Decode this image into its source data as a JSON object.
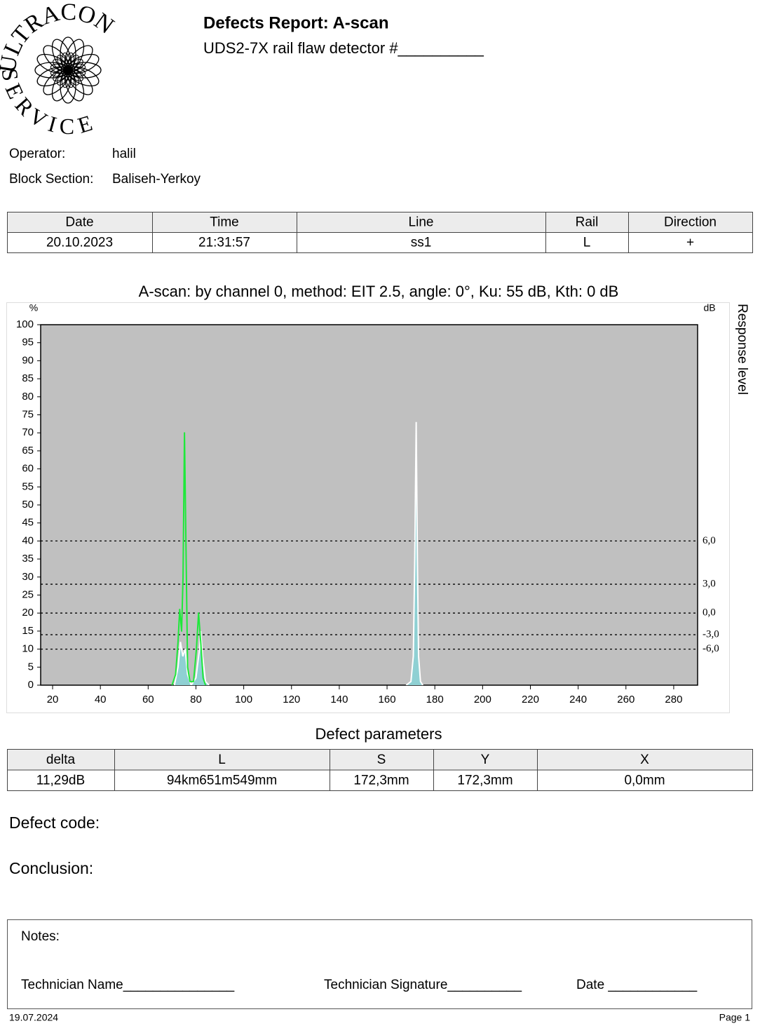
{
  "logo": {
    "top": "ULTRACON",
    "bottom": "SERVICE"
  },
  "header": {
    "title": "Defects Report: A-scan",
    "subtitle": "UDS2-7X rail flaw detector #__________"
  },
  "info": [
    {
      "label": "Operator:",
      "value": "halil"
    },
    {
      "label": "Block Section:",
      "value": "Baliseh-Yerkoy"
    }
  ],
  "run_table": {
    "columns": [
      "Date",
      "Time",
      "Line",
      "Rail",
      "Direction"
    ],
    "rows": [
      [
        "20.10.2023",
        "21:31:57",
        "ss1",
        "L",
        "+"
      ]
    ]
  },
  "chart_data": {
    "type": "line",
    "title": "A-scan: by channel 0, method: EIT 2.5, angle: 0°, Ku: 55 dB, Kth: 0 dB",
    "y_unit": "%",
    "y2_unit": "dB",
    "y2_label": "Response level",
    "xlim": [
      15,
      290
    ],
    "ylim": [
      0,
      100
    ],
    "xticks": [
      20,
      40,
      60,
      80,
      100,
      120,
      140,
      160,
      180,
      200,
      220,
      240,
      260,
      280
    ],
    "yticks": [
      0,
      5,
      10,
      15,
      20,
      25,
      30,
      35,
      40,
      45,
      50,
      55,
      60,
      65,
      70,
      75,
      80,
      85,
      90,
      95,
      100
    ],
    "thresholds": [
      {
        "value": 40,
        "label": "6,0"
      },
      {
        "value": 28,
        "label": "3,0"
      },
      {
        "value": 20,
        "label": "0,0"
      },
      {
        "value": 14,
        "label": "-3,0"
      },
      {
        "value": 10,
        "label": "-6,0"
      }
    ],
    "background": "#c0c0c0",
    "series": [
      {
        "kind": "area",
        "color": "#ffffff",
        "fill": "#8fd0d3",
        "x": [
          71,
          72.5,
          73.5,
          74.5,
          75.5,
          76.5,
          78,
          80,
          81.5,
          82,
          82.8,
          84,
          85.5,
          null,
          168,
          170,
          171,
          171.6,
          172.2,
          172.7,
          173.2,
          174,
          175
        ],
        "values": [
          0,
          5,
          12,
          8,
          10,
          3,
          0,
          2,
          10,
          15,
          8,
          1,
          0,
          null,
          0,
          1,
          8,
          35,
          73,
          35,
          8,
          1,
          0
        ]
      },
      {
        "kind": "line",
        "color": "#1ee83a",
        "x": [
          70,
          71.5,
          72.5,
          73.2,
          74,
          74.6,
          75.2,
          75.8,
          76.5,
          77.5,
          79,
          80.2,
          81.1,
          82,
          83,
          84
        ],
        "values": [
          0,
          3,
          12,
          21,
          15,
          30,
          70,
          40,
          5,
          1,
          1,
          10,
          20,
          12,
          2,
          0
        ]
      }
    ]
  },
  "defect_table": {
    "title": "Defect parameters",
    "columns": [
      "delta",
      "L",
      "S",
      "Y",
      "X"
    ],
    "rows": [
      [
        "11,29dB",
        "94km651m549mm",
        "172,3mm",
        "172,3mm",
        "0,0mm"
      ]
    ]
  },
  "defect_code": "Defect code:",
  "conclusion": "Conclusion:",
  "notes": {
    "label": "Notes:",
    "technician_name": "Technician Name_______________",
    "technician_signature": "Technician Signature__________",
    "date": "Date ____________"
  },
  "footer": {
    "date": "19.07.2024",
    "page": "Page 1"
  }
}
